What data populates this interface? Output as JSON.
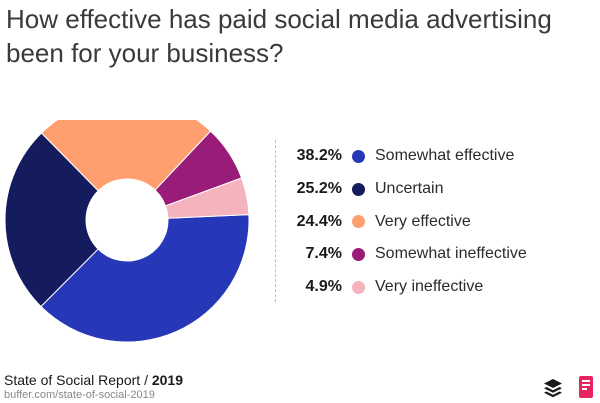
{
  "title": "How effective has paid social media advertising been for your business?",
  "footer": {
    "report": "State of Social Report /",
    "year": "2019",
    "url": "buffer.com/state-of-social-2019"
  },
  "icons": {
    "left": "buffer-stack-icon",
    "right": "brand-mark-icon"
  },
  "chart_data": {
    "type": "pie",
    "style": "donut",
    "title": "How effective has paid social media advertising been for your business?",
    "legend_position": "right",
    "slices": [
      {
        "label": "Somewhat effective",
        "value": 38.2,
        "display": "38.2%",
        "color": "#2637b8"
      },
      {
        "label": "Uncertain",
        "value": 25.2,
        "display": "25.2%",
        "color": "#141c5e"
      },
      {
        "label": "Very effective",
        "value": 24.4,
        "display": "24.4%",
        "color": "#ff9e6e"
      },
      {
        "label": "Somewhat ineffective",
        "value": 7.4,
        "display": "7.4%",
        "color": "#981c78"
      },
      {
        "label": "Very ineffective",
        "value": 4.9,
        "display": "4.9%",
        "color": "#f5b3bd"
      }
    ]
  }
}
